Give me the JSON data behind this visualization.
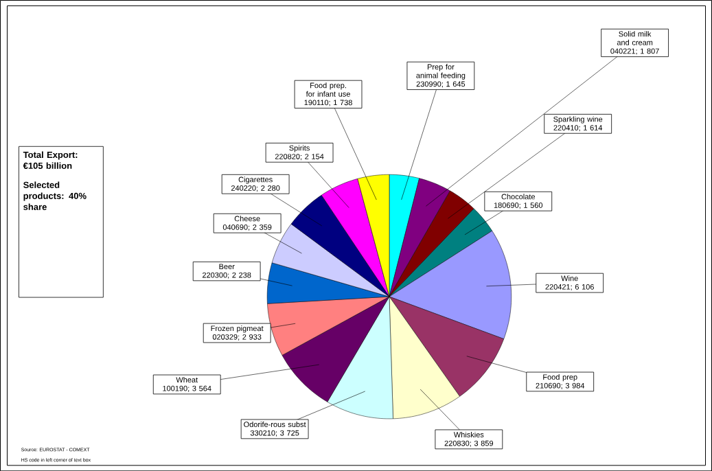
{
  "chart_data": {
    "type": "pie",
    "categories": [
      "Prep for animal feeding",
      "Solid milk and cream",
      "Sparkling wine",
      "Chocolate",
      "Wine",
      "Food prep",
      "Whiskies",
      "Odorife-rous subst",
      "Wheat",
      "Frozen pigmeat",
      "Beer",
      "Cheese",
      "Cigarettes",
      "Spirits",
      "Food prep. for infant use"
    ],
    "values": [
      1645,
      1807,
      1614,
      1560,
      6106,
      3984,
      3859,
      3725,
      3564,
      2933,
      2238,
      2359,
      2280,
      2154,
      1738
    ],
    "value_labels": [
      "230990; 1 645",
      "040221; 1 807",
      "220410; 1 614",
      "180690; 1 560",
      "220421; 6 106",
      "210690; 3 984",
      "220830; 3 859",
      "330210; 3 725",
      "100190; 3 564",
      "020329; 2 933",
      "220300; 2 238",
      "040690; 2 359",
      "240220; 2 280",
      "220820; 2 154",
      "190110; 1 738"
    ],
    "colors": [
      "#00ffff",
      "#800080",
      "#800000",
      "#008080",
      "#9999ff",
      "#993366",
      "#ffffcc",
      "#ccffff",
      "#660066",
      "#ff8080",
      "#0066cc",
      "#ccccff",
      "#000080",
      "#ff00ff",
      "#ffff00"
    ],
    "annotations": [
      "Total Export: €105 billion",
      "Selected products: 40% share",
      "Source: EUROSTAT - COMEXT",
      "HS code in left corner of text box"
    ]
  }
}
